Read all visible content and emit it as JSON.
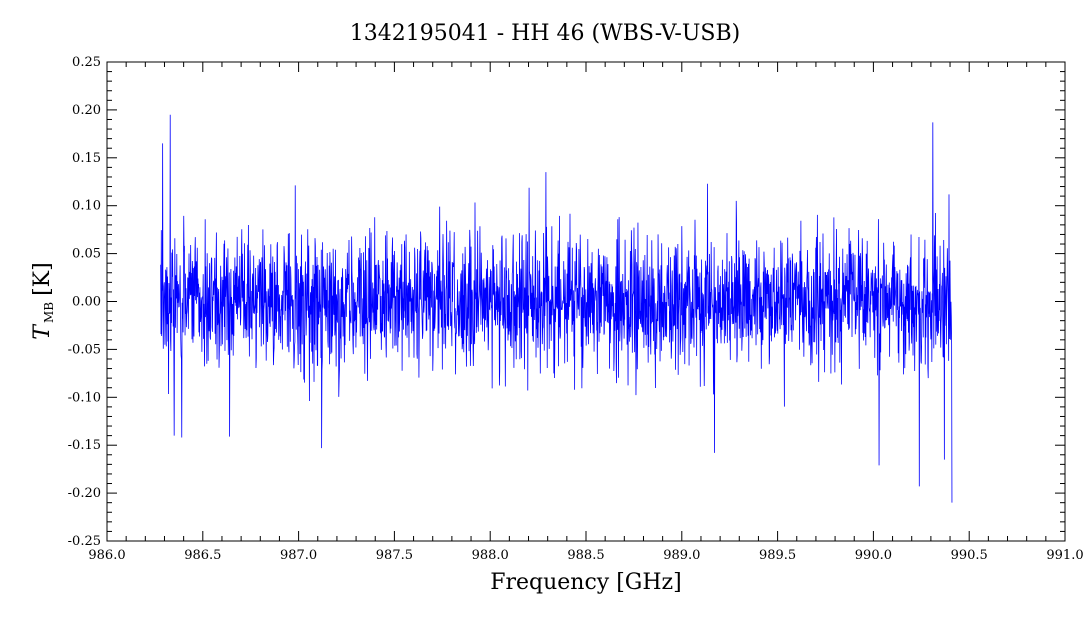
{
  "chart_data": {
    "type": "line",
    "title": "1342195041 - HH 46 (WBS-V-USB)",
    "xlabel": "Frequency [GHz]",
    "ylabel_main": "T",
    "ylabel_sub": "MB",
    "ylabel_unit": "[K]",
    "xlim": [
      986.0,
      991.0
    ],
    "ylim": [
      -0.25,
      0.25
    ],
    "x_ticks": [
      "986.0",
      "986.5",
      "987.0",
      "987.5",
      "988.0",
      "988.5",
      "989.0",
      "989.5",
      "990.0",
      "990.5",
      "991.0"
    ],
    "y_ticks": [
      "-0.25",
      "-0.20",
      "-0.15",
      "-0.10",
      "-0.05",
      "0.00",
      "0.05",
      "0.10",
      "0.15",
      "0.20",
      "0.25"
    ],
    "grid": false,
    "series": [
      {
        "color": "#0000ff",
        "x_start": 986.28,
        "x_end": 990.41,
        "num_points": 2400,
        "noise_rms": 0.035,
        "peaks": [
          {
            "x": 986.29,
            "y": 0.165
          },
          {
            "x": 986.33,
            "y": 0.195
          },
          {
            "x": 986.35,
            "y": -0.14
          },
          {
            "x": 986.39,
            "y": -0.142
          },
          {
            "x": 986.64,
            "y": -0.141
          },
          {
            "x": 987.12,
            "y": -0.153
          },
          {
            "x": 988.29,
            "y": 0.135
          },
          {
            "x": 989.17,
            "y": -0.158
          },
          {
            "x": 990.03,
            "y": -0.171
          },
          {
            "x": 990.24,
            "y": -0.193
          },
          {
            "x": 990.31,
            "y": 0.187
          },
          {
            "x": 990.37,
            "y": -0.165
          },
          {
            "x": 990.41,
            "y": -0.21
          }
        ]
      }
    ]
  }
}
